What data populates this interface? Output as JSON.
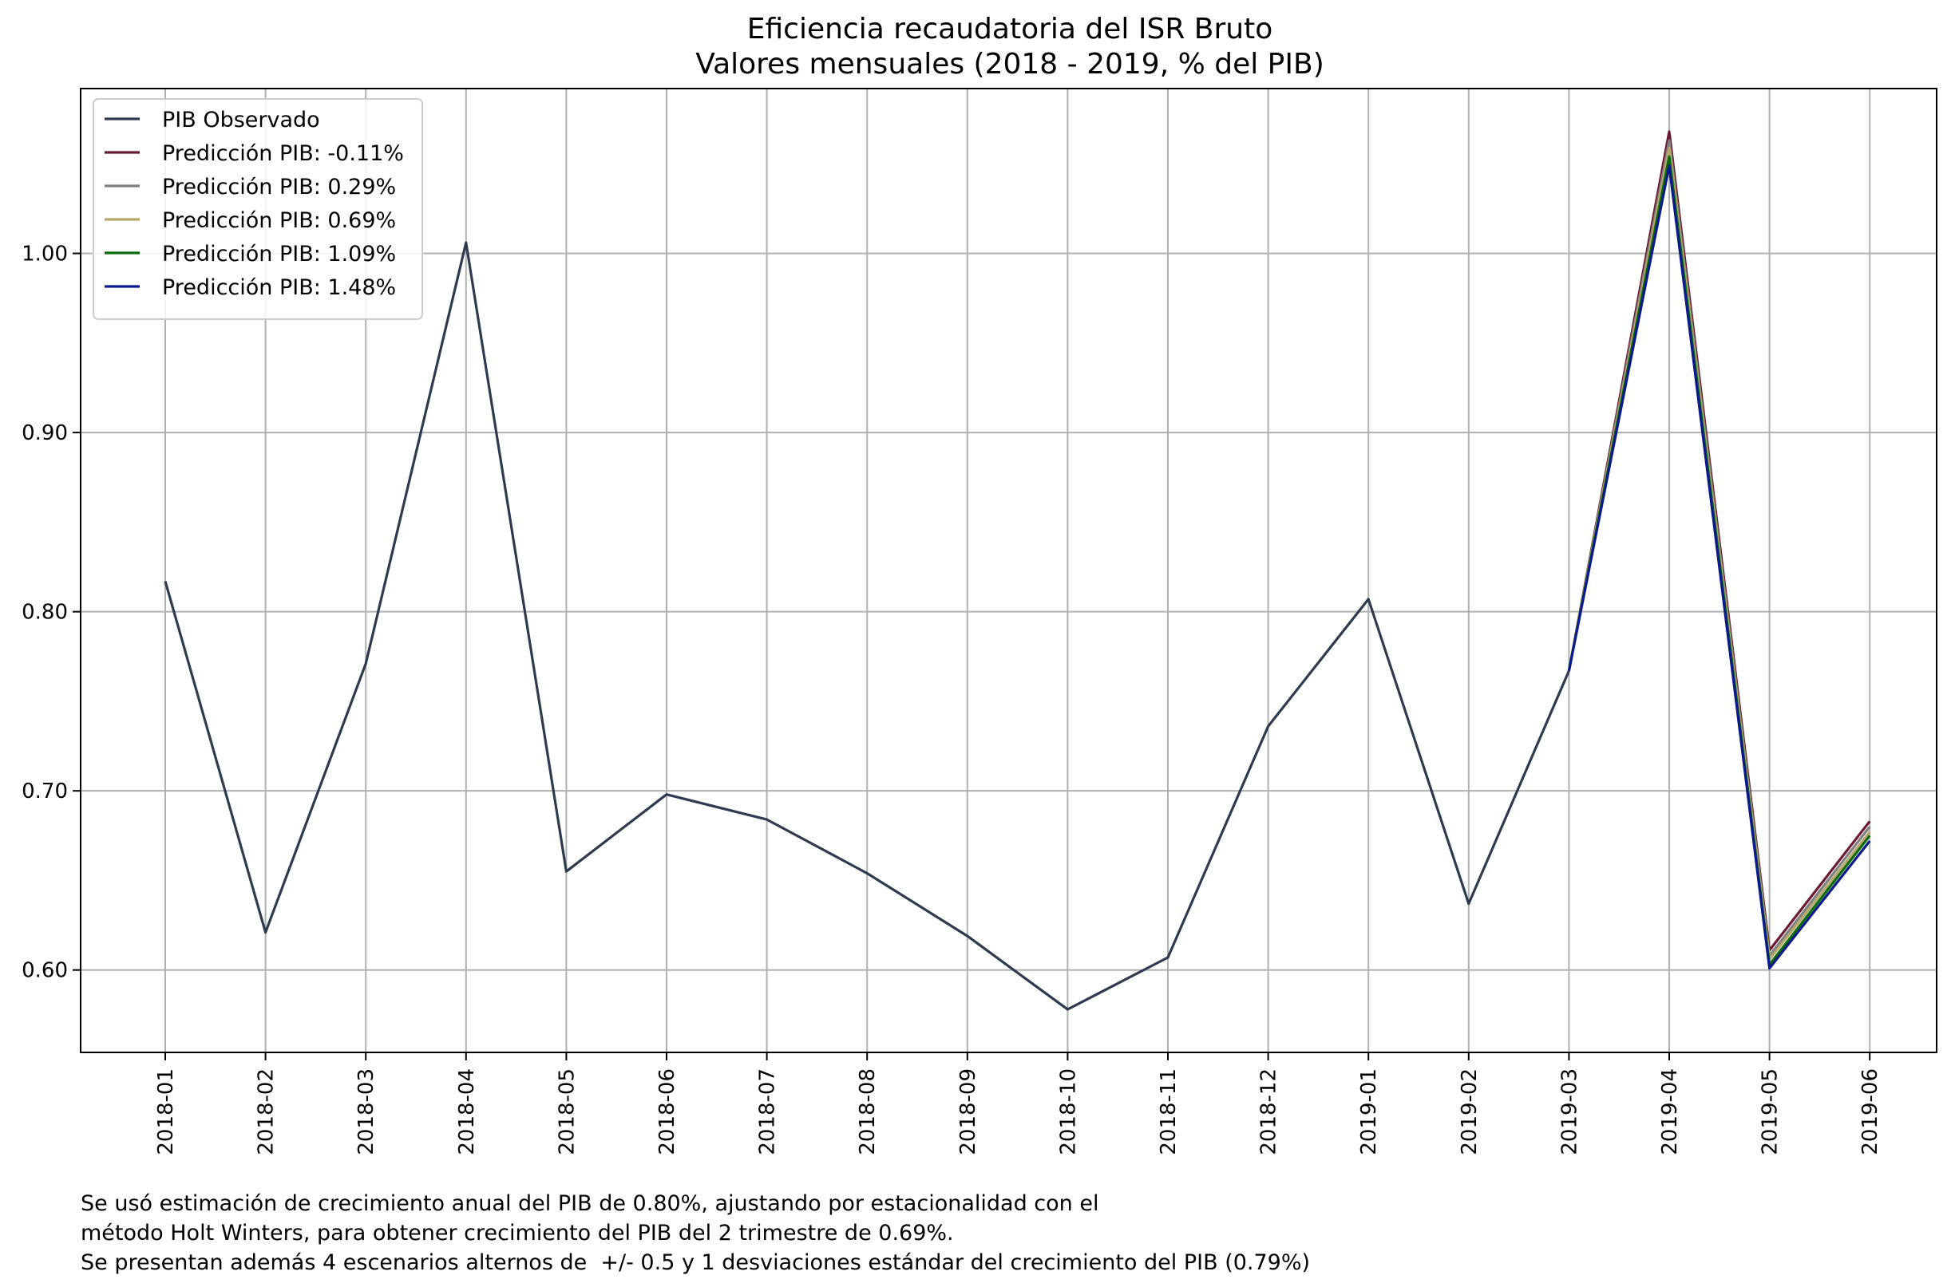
{
  "chart_data": {
    "type": "line",
    "title": "Eficiencia recaudatoria del ISR Bruto",
    "subtitle": "Valores mensuales (2018 - 2019, % del PIB)",
    "xlabel": "",
    "ylabel": "",
    "categories": [
      "2018-01",
      "2018-02",
      "2018-03",
      "2018-04",
      "2018-05",
      "2018-06",
      "2018-07",
      "2018-08",
      "2018-09",
      "2018-10",
      "2018-11",
      "2018-12",
      "2019-01",
      "2019-02",
      "2019-03",
      "2019-04",
      "2019-05",
      "2019-06"
    ],
    "yticks": [
      "0.60",
      "0.70",
      "0.80",
      "0.90",
      "1.00"
    ],
    "ylim": [
      0.554,
      1.092
    ],
    "grid": true,
    "legend_position": "top-left",
    "series": [
      {
        "name": "PIB Observado",
        "color": "#2e3a4f",
        "x": [
          "2018-01",
          "2018-02",
          "2018-03",
          "2018-04",
          "2018-05",
          "2018-06",
          "2018-07",
          "2018-08",
          "2018-09",
          "2018-10",
          "2018-11",
          "2018-12",
          "2019-01",
          "2019-02",
          "2019-03"
        ],
        "values": [
          0.817,
          0.621,
          0.771,
          1.006,
          0.655,
          0.698,
          0.684,
          0.654,
          0.619,
          0.578,
          0.607,
          0.736,
          0.807,
          0.637,
          0.767
        ]
      },
      {
        "name": "Predicción PIB: -0.11%",
        "color": "#6b1a33",
        "x": [
          "2019-03",
          "2019-04",
          "2019-05",
          "2019-06"
        ],
        "values": [
          0.767,
          1.068,
          0.611,
          0.683
        ]
      },
      {
        "name": "Predicción PIB: 0.29%",
        "color": "#808080",
        "x": [
          "2019-03",
          "2019-04",
          "2019-05",
          "2019-06"
        ],
        "values": [
          0.767,
          1.063,
          0.608,
          0.68
        ]
      },
      {
        "name": "Predicción PIB: 0.69%",
        "color": "#b5a868",
        "x": [
          "2019-03",
          "2019-04",
          "2019-05",
          "2019-06"
        ],
        "values": [
          0.767,
          1.059,
          0.606,
          0.677
        ]
      },
      {
        "name": "Predicción PIB: 1.09%",
        "color": "#0a6b0a",
        "x": [
          "2019-03",
          "2019-04",
          "2019-05",
          "2019-06"
        ],
        "values": [
          0.767,
          1.054,
          0.603,
          0.675
        ]
      },
      {
        "name": "Predicción PIB: 1.48%",
        "color": "#0a1a8c",
        "x": [
          "2019-03",
          "2019-04",
          "2019-05",
          "2019-06"
        ],
        "values": [
          0.767,
          1.049,
          0.601,
          0.672
        ]
      }
    ]
  },
  "footnote": {
    "line1": "Se usó estimación de crecimiento anual del PIB de 0.80%, ajustando por estacionalidad con el",
    "line2": "método Holt Winters, para obtener crecimiento del PIB del 2 trimestre de 0.69%.",
    "line3": "Se presentan además 4 escenarios alternos de  +/- 0.5 y 1 desviaciones estándar del crecimiento del PIB (0.79%)"
  }
}
